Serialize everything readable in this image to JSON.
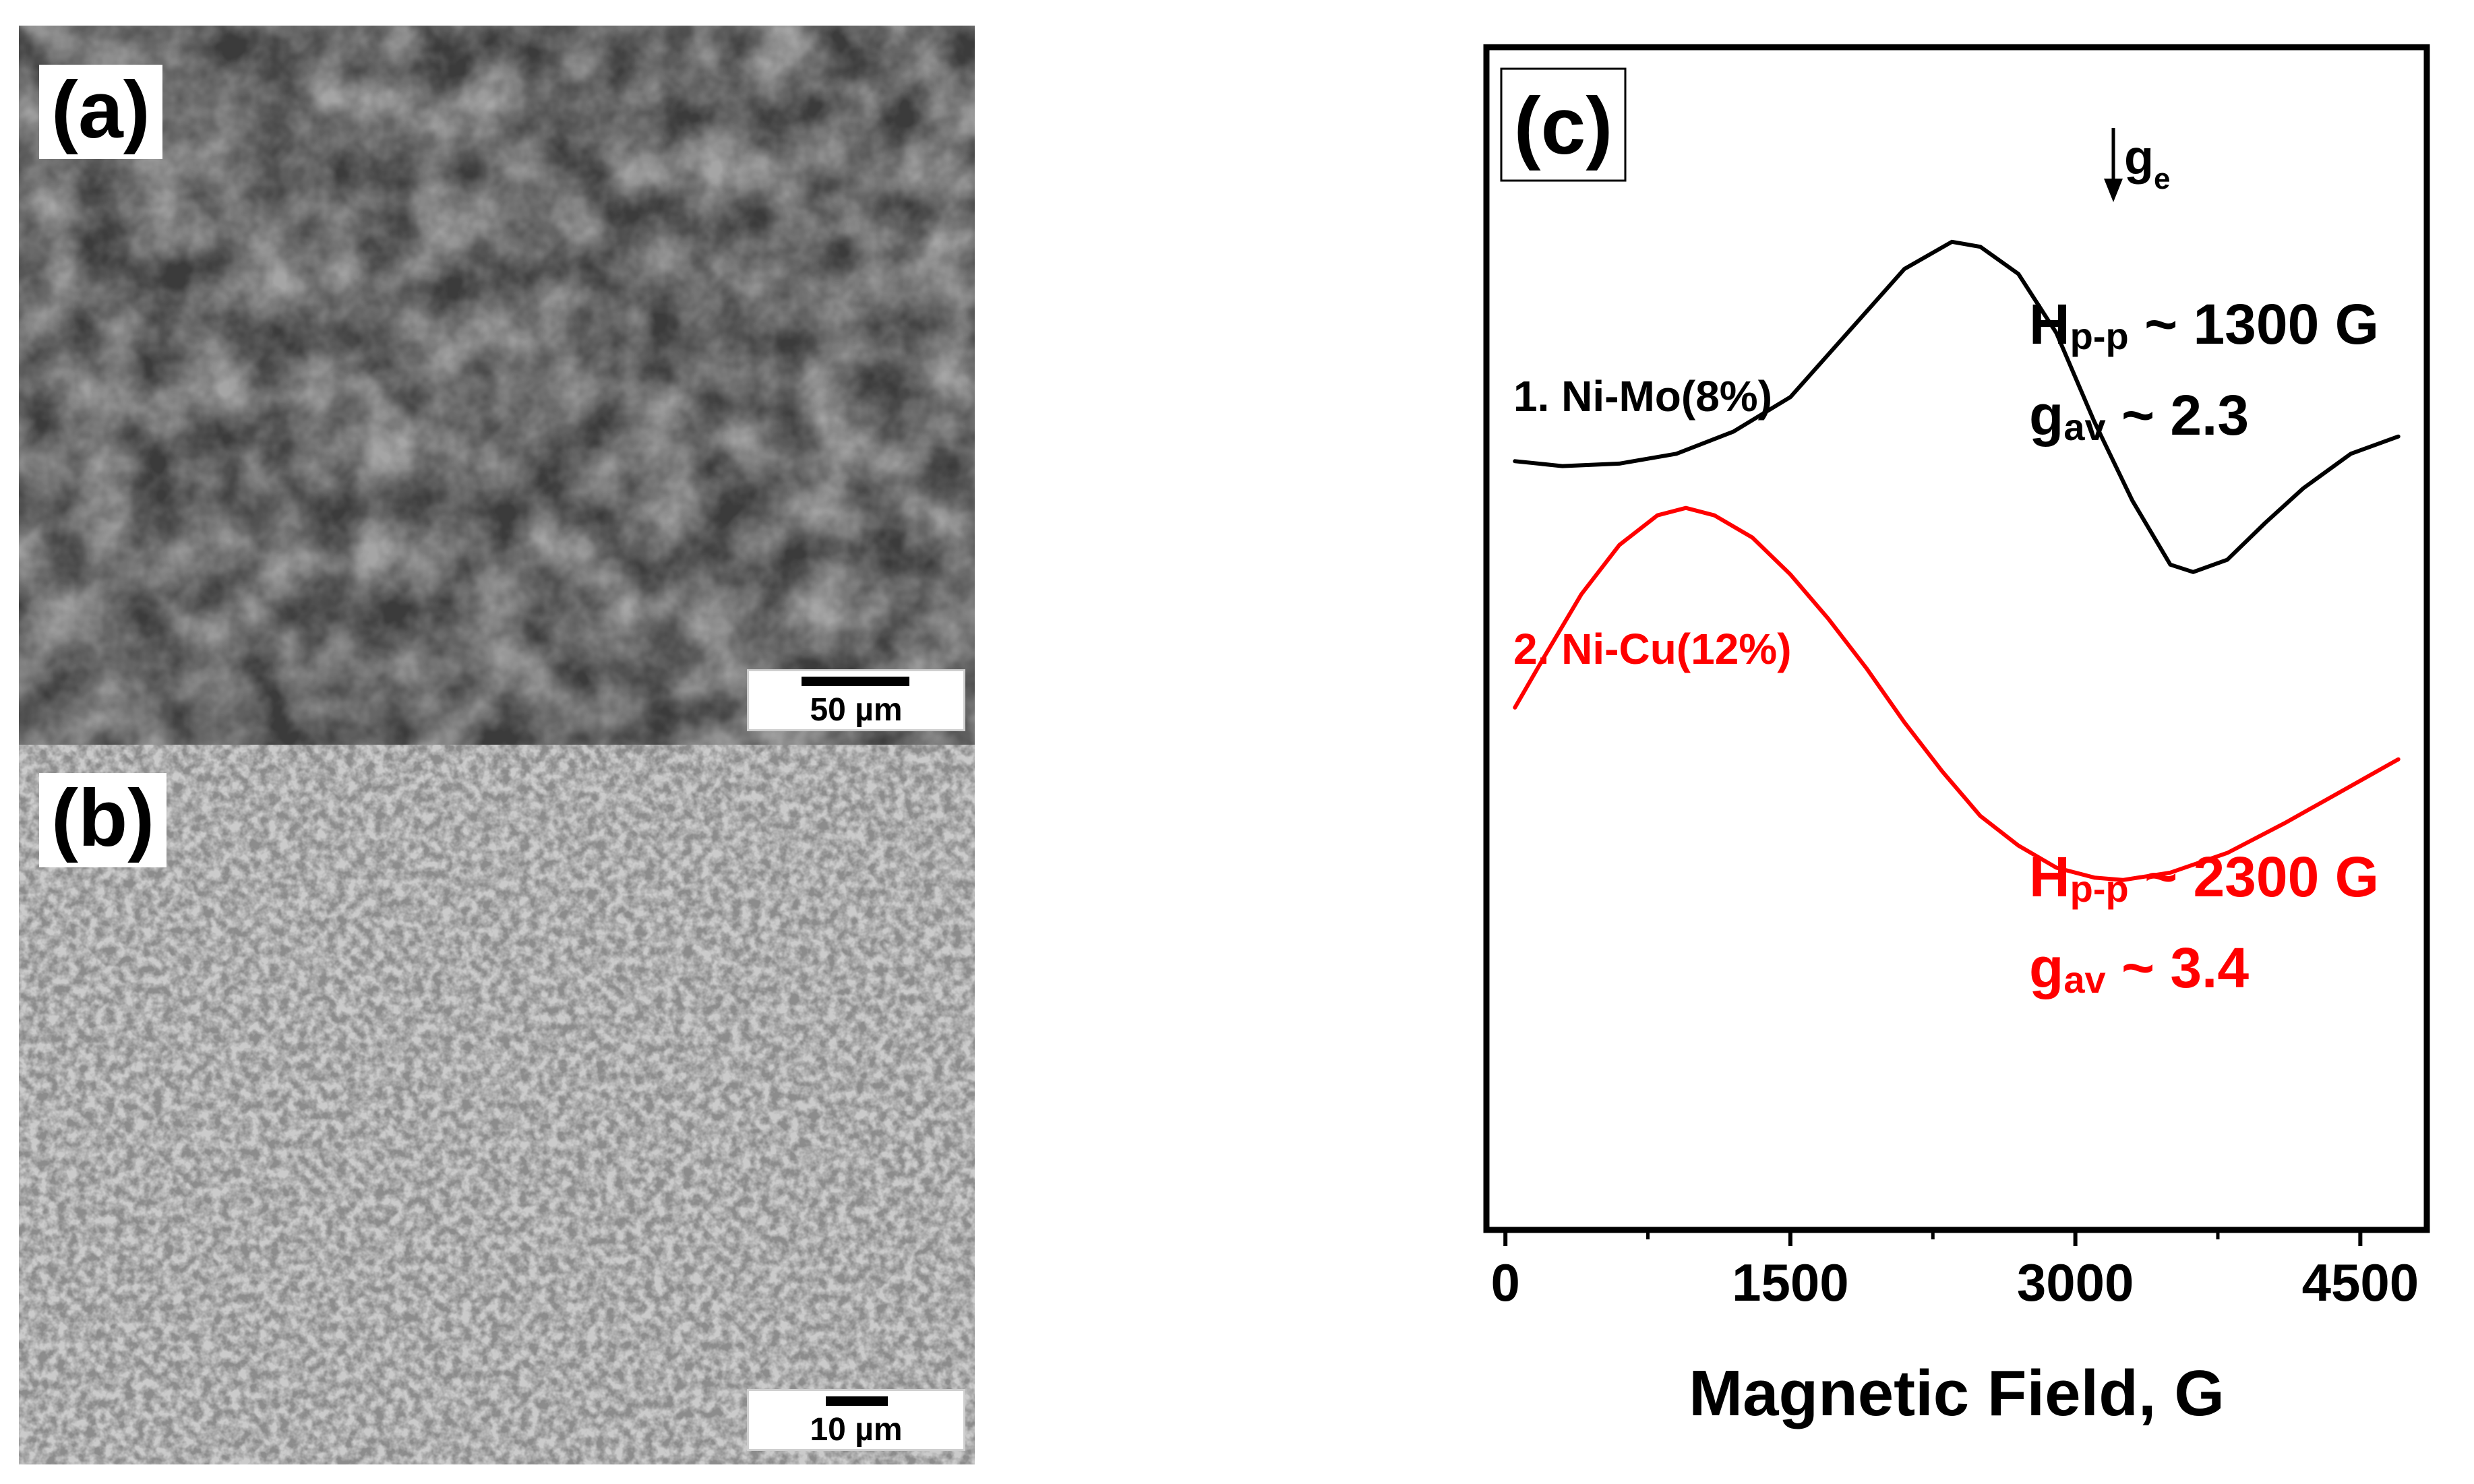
{
  "panels": {
    "a": {
      "label": "(a)",
      "scale_bar": "50 µm"
    },
    "b": {
      "label": "(b)",
      "scale_bar": "10 µm"
    },
    "c": {
      "label": "(c)"
    }
  },
  "colors": {
    "series1": "#000000",
    "series2": "#ff0000",
    "axis": "#000000"
  },
  "chart_data": {
    "type": "line",
    "title": "",
    "xlabel": "Magnetic Field, G",
    "ylabel": "",
    "xlim": [
      -100,
      4850
    ],
    "ylim": [
      -1.05,
      1.35
    ],
    "x_ticks": [
      0,
      1500,
      3000,
      4500
    ],
    "x_tick_labels": [
      "0",
      "1500",
      "3000",
      "4500"
    ],
    "grid": false,
    "marker": {
      "label": "g",
      "subscript": "e",
      "x": 3200
    },
    "series": [
      {
        "name": "1. Ni-Mo(8%)",
        "color": "#000000",
        "x": [
          50,
          300,
          600,
          900,
          1200,
          1500,
          1800,
          2100,
          2350,
          2500,
          2700,
          2900,
          3100,
          3300,
          3500,
          3620,
          3800,
          4000,
          4200,
          4450,
          4700
        ],
        "y": [
          0.51,
          0.5,
          0.505,
          0.525,
          0.57,
          0.64,
          0.77,
          0.9,
          0.955,
          0.945,
          0.89,
          0.77,
          0.59,
          0.43,
          0.3,
          0.285,
          0.31,
          0.385,
          0.455,
          0.525,
          0.56
        ],
        "annotations": [
          "Hp-p ~ 1300 G",
          "gav ~ 2.3"
        ]
      },
      {
        "name": "2. Ni-Cu(12%)",
        "color": "#ff0000",
        "x": [
          50,
          200,
          400,
          600,
          800,
          950,
          1100,
          1300,
          1500,
          1700,
          1900,
          2100,
          2300,
          2500,
          2700,
          2900,
          3100,
          3250,
          3500,
          3800,
          4100,
          4400,
          4700
        ],
        "y": [
          0.01,
          0.11,
          0.24,
          0.34,
          0.4,
          0.415,
          0.4,
          0.355,
          0.28,
          0.19,
          0.09,
          -0.02,
          -0.12,
          -0.21,
          -0.27,
          -0.315,
          -0.335,
          -0.34,
          -0.325,
          -0.285,
          -0.225,
          -0.16,
          -0.095
        ],
        "annotations": [
          "Hp-p ~ 2300 G",
          "gav ~ 3.4"
        ]
      }
    ]
  }
}
